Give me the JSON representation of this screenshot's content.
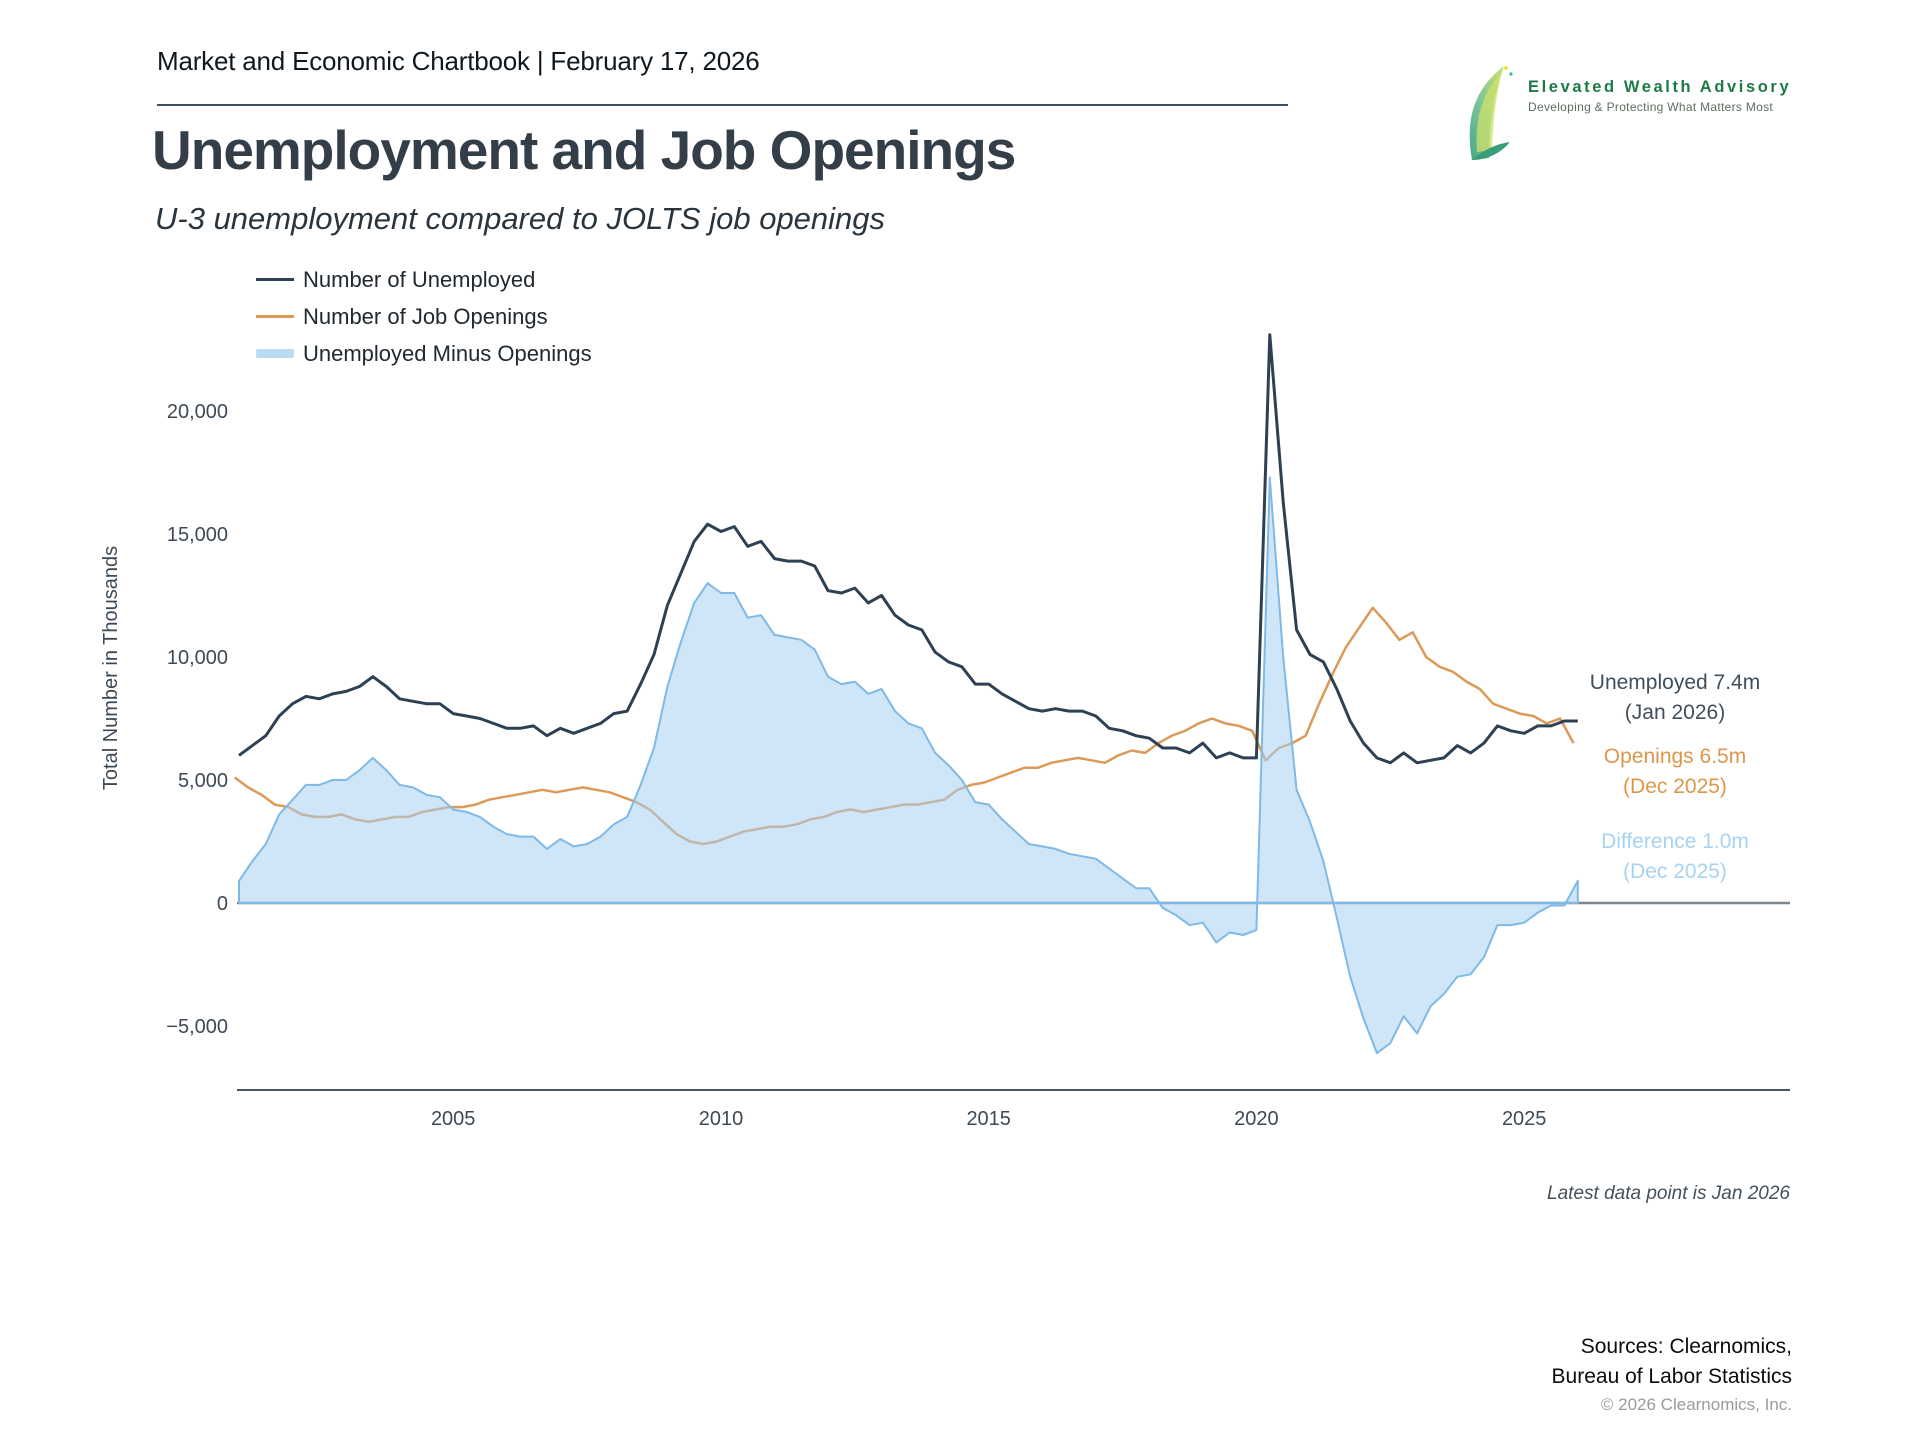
{
  "header": {
    "title": "Market and Economic Chartbook | February 17, 2026"
  },
  "brand": {
    "name": "Elevated Wealth Advisory",
    "tagline": "Developing & Protecting What Matters Most"
  },
  "page": {
    "title": "Unemployment and Job Openings",
    "subtitle": "U-3 unemployment compared to JOLTS job openings"
  },
  "callouts": {
    "unemployed": {
      "line1": "Unemployed 7.4m",
      "line2": "(Jan 2026)",
      "color": "#3f4f5c"
    },
    "openings": {
      "line1": "Openings 6.5m",
      "line2": "(Dec 2025)",
      "color": "#dd9749"
    },
    "difference": {
      "line1": "Difference 1.0m",
      "line2": "(Dec 2025)",
      "color": "#a7d3f2"
    }
  },
  "footer": {
    "latest_note": "Latest data point is Jan 2026",
    "sources_line1": "Sources: Clearnomics,",
    "sources_line2": "Bureau of Labor Statistics",
    "copyright": "© 2026 Clearnomics, Inc."
  },
  "chart_data": {
    "type": "line",
    "title": "Unemployment and Job Openings",
    "subtitle": "U-3 unemployment compared to JOLTS job openings",
    "ylabel": "Total Number in Thousands",
    "unit": "thousands of persons / openings",
    "xlim": [
      2000.92,
      2026.2
    ],
    "ylim": [
      -7600,
      23500
    ],
    "grid": false,
    "legend_position": "top-left",
    "xticks": [
      2005,
      2010,
      2015,
      2020,
      2025
    ],
    "yticks": [
      {
        "value": 20000,
        "label": "20,000"
      },
      {
        "value": 15000,
        "label": "15,000"
      },
      {
        "value": 10000,
        "label": "10,000"
      },
      {
        "value": 5000,
        "label": "5,000"
      },
      {
        "value": 0,
        "label": "0"
      },
      {
        "value": -5000,
        "label": "−5,000"
      }
    ],
    "legend": [
      {
        "key": "unemployed",
        "label": "Number of Unemployed",
        "color": "#2e4154",
        "style": "line"
      },
      {
        "key": "openings",
        "label": "Number of Job Openings",
        "color": "#dc9a58",
        "style": "line"
      },
      {
        "key": "difference",
        "label": "Unemployed Minus Openings",
        "color": "#b9dcf4",
        "style": "band"
      }
    ],
    "series": [
      {
        "key": "unemployed",
        "name": "Number of Unemployed",
        "start": 2001.0,
        "step": 0.25,
        "values": [
          6000,
          6400,
          6800,
          7600,
          8100,
          8400,
          8300,
          8500,
          8600,
          8800,
          9200,
          8800,
          8300,
          8200,
          8100,
          8100,
          7700,
          7600,
          7500,
          7300,
          7100,
          7100,
          7200,
          6800,
          7100,
          6900,
          7100,
          7300,
          7700,
          7800,
          8900,
          10100,
          12100,
          13400,
          14700,
          15400,
          15100,
          15300,
          14500,
          14700,
          14000,
          13900,
          13900,
          13700,
          12700,
          12600,
          12800,
          12200,
          12500,
          11700,
          11300,
          11100,
          10200,
          9800,
          9600,
          8900,
          8900,
          8500,
          8200,
          7900,
          7800,
          7900,
          7800,
          7800,
          7600,
          7100,
          7000,
          6800,
          6700,
          6300,
          6300,
          6100,
          6500,
          5900,
          6100,
          5900,
          5900,
          23100,
          16300,
          11100,
          10100,
          9800,
          8700,
          7400,
          6500,
          5900,
          5700,
          6100,
          5700,
          5800,
          5900,
          6400,
          6100,
          6500,
          7200,
          7000,
          6900,
          7200,
          7200,
          7400,
          7400
        ]
      },
      {
        "key": "openings",
        "name": "Number of Job Openings",
        "start": 2000.92,
        "step": 0.25,
        "values": [
          5100,
          4700,
          4400,
          4000,
          3900,
          3600,
          3500,
          3500,
          3600,
          3400,
          3300,
          3400,
          3500,
          3500,
          3700,
          3800,
          3900,
          3900,
          4000,
          4200,
          4300,
          4400,
          4500,
          4600,
          4500,
          4600,
          4700,
          4600,
          4500,
          4300,
          4100,
          3800,
          3300,
          2800,
          2500,
          2400,
          2500,
          2700,
          2900,
          3000,
          3100,
          3100,
          3200,
          3400,
          3500,
          3700,
          3800,
          3700,
          3800,
          3900,
          4000,
          4000,
          4100,
          4200,
          4600,
          4800,
          4900,
          5100,
          5300,
          5500,
          5500,
          5700,
          5800,
          5900,
          5800,
          5700,
          6000,
          6200,
          6100,
          6500,
          6800,
          7000,
          7300,
          7500,
          7300,
          7200,
          7000,
          5800,
          6300,
          6500,
          6800,
          8100,
          9300,
          10400,
          11200,
          12000,
          11400,
          10700,
          11000,
          10000,
          9600,
          9400,
          9000,
          8700,
          8100,
          7900,
          7700,
          7600,
          7300,
          7500,
          6500
        ]
      },
      {
        "key": "difference",
        "name": "Unemployed Minus Openings",
        "derivation": "unemployed values minus openings values (filled area around zero)",
        "fill": "#a8d0f2",
        "edge": "#7fb9e6"
      }
    ]
  }
}
